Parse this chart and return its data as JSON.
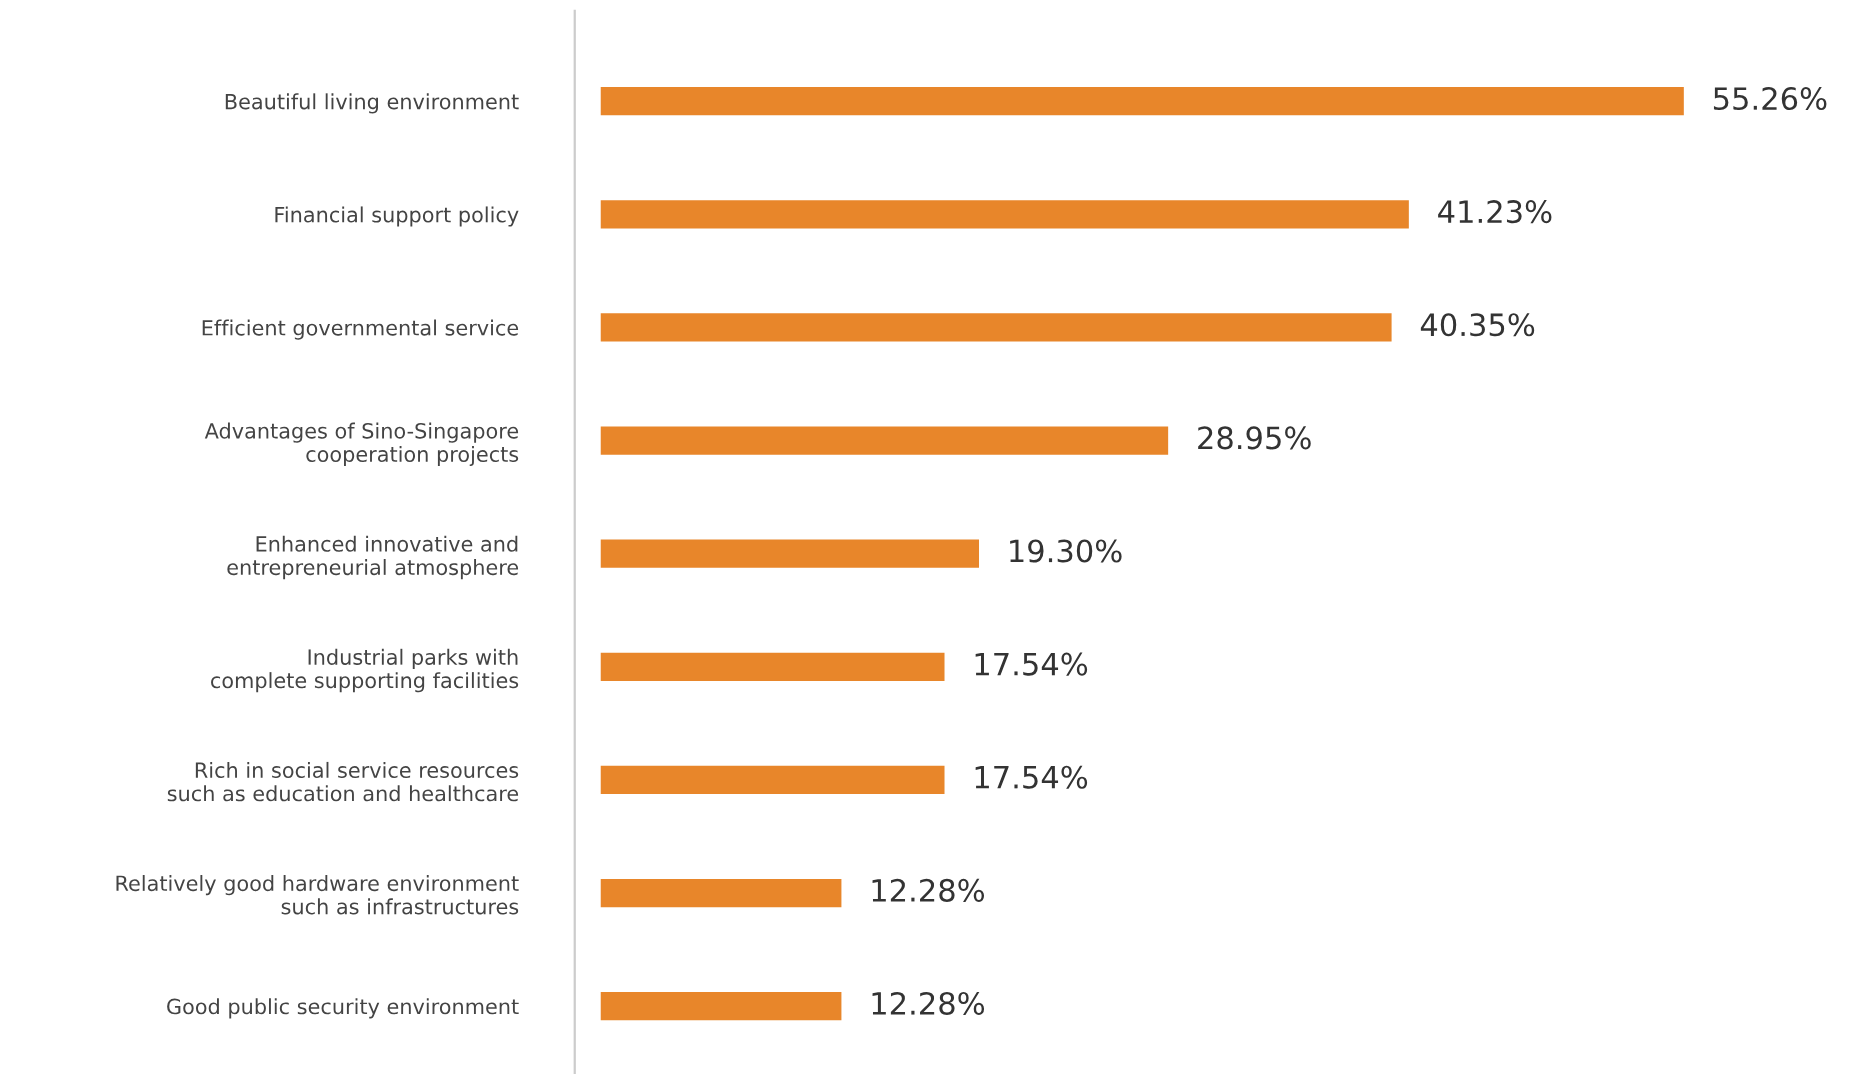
{
  "chart_data": {
    "type": "bar",
    "orientation": "horizontal",
    "categories": [
      "Beautiful living environment",
      "Financial support policy",
      "Efficient governmental service",
      "Advantages of Sino-Singapore\ncooperation projects",
      "Enhanced innovative and\nentrepreneurial atmosphere",
      "Industrial parks with\ncomplete supporting facilities",
      "Rich in social service resources\nsuch as education and healthcare",
      "Relatively good hardware environment\nsuch as infrastructures",
      "Good public security environment"
    ],
    "values": [
      55.26,
      41.23,
      40.35,
      28.95,
      19.3,
      17.54,
      17.54,
      12.28,
      12.28
    ],
    "value_labels": [
      "55.26%",
      "41.23%",
      "40.35%",
      "28.95%",
      "19.30%",
      "17.54%",
      "17.54%",
      "12.28%",
      "12.28%"
    ],
    "color": "#e8862a"
  }
}
